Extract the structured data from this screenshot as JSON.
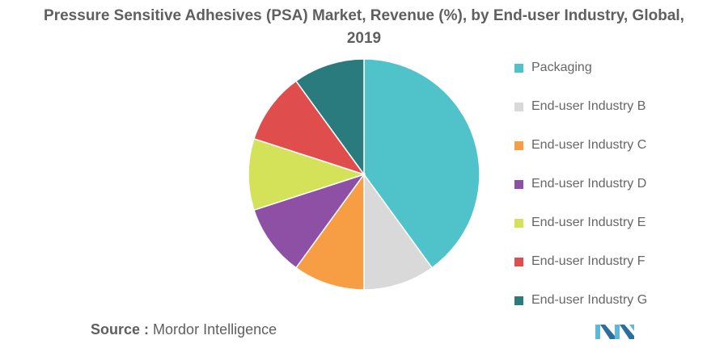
{
  "title_line1": "Pressure Sensitive Adhesives (PSA) Market, Revenue (%), by End-user Industry, Global,",
  "title_line2": "2019",
  "chart_data": {
    "type": "pie",
    "title": "Pressure Sensitive Adhesives (PSA) Market, Revenue (%), by End-user Industry, Global, 2019",
    "legend_position": "right",
    "start": "top, clockwise",
    "slices": [
      {
        "label": "Packaging",
        "value": 40,
        "color": "#4fc3c9"
      },
      {
        "label": "End-user Industry B",
        "value": 10,
        "color": "#d9d9d9"
      },
      {
        "label": "End-user Industry C",
        "value": 10,
        "color": "#f79e45"
      },
      {
        "label": "End-user Industry D",
        "value": 10,
        "color": "#8e50a5"
      },
      {
        "label": "End-user Industry E",
        "value": 10,
        "color": "#d4e25a"
      },
      {
        "label": "End-user Industry F",
        "value": 10,
        "color": "#e04d4d"
      },
      {
        "label": "End-user Industry G",
        "value": 10,
        "color": "#2a7b7d"
      }
    ]
  },
  "source": {
    "label": "Source :",
    "text": "Mordor Intelligence"
  },
  "logo": {
    "name": "mordor-intelligence-logo",
    "color": "#5fb8d6"
  }
}
